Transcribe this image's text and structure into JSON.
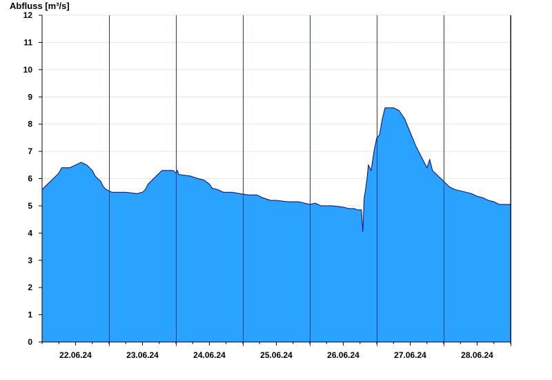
{
  "chart_data": {
    "type": "area",
    "ylabel": "Abfluss [m³/s]",
    "xlabel": "",
    "ylim": [
      0,
      12
    ],
    "yticks": [
      0,
      1,
      2,
      3,
      4,
      5,
      6,
      7,
      8,
      9,
      10,
      11,
      12
    ],
    "x_range": [
      "2024-06-21T12:00",
      "2024-06-28T12:00"
    ],
    "day_separators": [
      "2024-06-22T12:00",
      "2024-06-23T12:00",
      "2024-06-24T12:00",
      "2024-06-25T12:00",
      "2024-06-26T12:00",
      "2024-06-27T12:00",
      "2024-06-28T12:00"
    ],
    "xticks": [
      {
        "x": "2024-06-22T00:00",
        "label": "22.06.24"
      },
      {
        "x": "2024-06-23T00:00",
        "label": "23.06.24"
      },
      {
        "x": "2024-06-24T00:00",
        "label": "24.06.24"
      },
      {
        "x": "2024-06-25T00:00",
        "label": "25.06.24"
      },
      {
        "x": "2024-06-26T00:00",
        "label": "26.06.24"
      },
      {
        "x": "2024-06-27T00:00",
        "label": "27.06.24"
      },
      {
        "x": "2024-06-28T00:00",
        "label": "28.06.24"
      }
    ],
    "grid": true,
    "series": [
      {
        "fill_color": "#29a3ff",
        "line_color": "#00008b",
        "points": [
          [
            "2024-06-21T12:00",
            5.6
          ],
          [
            "2024-06-21T13:00",
            5.7
          ],
          [
            "2024-06-21T14:00",
            5.8
          ],
          [
            "2024-06-21T16:00",
            6.0
          ],
          [
            "2024-06-21T18:00",
            6.2
          ],
          [
            "2024-06-21T19:00",
            6.4
          ],
          [
            "2024-06-21T22:00",
            6.4
          ],
          [
            "2024-06-22T00:00",
            6.5
          ],
          [
            "2024-06-22T02:00",
            6.6
          ],
          [
            "2024-06-22T04:00",
            6.5
          ],
          [
            "2024-06-22T06:00",
            6.3
          ],
          [
            "2024-06-22T07:00",
            6.1
          ],
          [
            "2024-06-22T08:00",
            6.0
          ],
          [
            "2024-06-22T09:00",
            5.9
          ],
          [
            "2024-06-22T10:00",
            5.7
          ],
          [
            "2024-06-22T11:00",
            5.6
          ],
          [
            "2024-06-22T12:00",
            5.55
          ],
          [
            "2024-06-22T13:00",
            5.5
          ],
          [
            "2024-06-22T18:00",
            5.5
          ],
          [
            "2024-06-22T22:00",
            5.45
          ],
          [
            "2024-06-23T00:00",
            5.5
          ],
          [
            "2024-06-23T01:00",
            5.6
          ],
          [
            "2024-06-23T02:00",
            5.8
          ],
          [
            "2024-06-23T04:00",
            6.0
          ],
          [
            "2024-06-23T06:00",
            6.2
          ],
          [
            "2024-06-23T07:00",
            6.3
          ],
          [
            "2024-06-23T11:00",
            6.3
          ],
          [
            "2024-06-23T12:00",
            6.2
          ],
          [
            "2024-06-23T12:30",
            6.3
          ],
          [
            "2024-06-23T13:00",
            6.15
          ],
          [
            "2024-06-23T17:00",
            6.1
          ],
          [
            "2024-06-23T20:00",
            6.0
          ],
          [
            "2024-06-23T22:00",
            5.95
          ],
          [
            "2024-06-24T00:00",
            5.8
          ],
          [
            "2024-06-24T01:00",
            5.65
          ],
          [
            "2024-06-24T03:00",
            5.6
          ],
          [
            "2024-06-24T05:00",
            5.5
          ],
          [
            "2024-06-24T08:00",
            5.5
          ],
          [
            "2024-06-24T11:00",
            5.45
          ],
          [
            "2024-06-24T14:00",
            5.4
          ],
          [
            "2024-06-24T17:00",
            5.4
          ],
          [
            "2024-06-24T19:00",
            5.3
          ],
          [
            "2024-06-24T22:00",
            5.2
          ],
          [
            "2024-06-25T00:00",
            5.2
          ],
          [
            "2024-06-25T04:00",
            5.15
          ],
          [
            "2024-06-25T08:00",
            5.15
          ],
          [
            "2024-06-25T12:00",
            5.05
          ],
          [
            "2024-06-25T14:00",
            5.1
          ],
          [
            "2024-06-25T16:00",
            5.0
          ],
          [
            "2024-06-25T20:00",
            5.0
          ],
          [
            "2024-06-26T00:00",
            4.95
          ],
          [
            "2024-06-26T02:00",
            4.9
          ],
          [
            "2024-06-26T04:00",
            4.9
          ],
          [
            "2024-06-26T05:00",
            4.85
          ],
          [
            "2024-06-26T06:30",
            4.85
          ],
          [
            "2024-06-26T07:00",
            4.05
          ],
          [
            "2024-06-26T07:30",
            5.3
          ],
          [
            "2024-06-26T08:00",
            5.6
          ],
          [
            "2024-06-26T08:30",
            6.0
          ],
          [
            "2024-06-26T09:00",
            6.5
          ],
          [
            "2024-06-26T10:00",
            6.3
          ],
          [
            "2024-06-26T11:00",
            7.0
          ],
          [
            "2024-06-26T12:00",
            7.5
          ],
          [
            "2024-06-26T13:00",
            7.6
          ],
          [
            "2024-06-26T14:00",
            8.2
          ],
          [
            "2024-06-26T15:00",
            8.6
          ],
          [
            "2024-06-26T18:00",
            8.6
          ],
          [
            "2024-06-26T20:00",
            8.5
          ],
          [
            "2024-06-26T22:00",
            8.2
          ],
          [
            "2024-06-27T00:00",
            7.7
          ],
          [
            "2024-06-27T02:00",
            7.2
          ],
          [
            "2024-06-27T03:00",
            7.0
          ],
          [
            "2024-06-27T04:00",
            6.8
          ],
          [
            "2024-06-27T05:00",
            6.6
          ],
          [
            "2024-06-27T06:00",
            6.4
          ],
          [
            "2024-06-27T07:00",
            6.7
          ],
          [
            "2024-06-27T08:00",
            6.3
          ],
          [
            "2024-06-27T10:00",
            6.1
          ],
          [
            "2024-06-27T12:00",
            5.9
          ],
          [
            "2024-06-27T14:00",
            5.7
          ],
          [
            "2024-06-27T16:00",
            5.6
          ],
          [
            "2024-06-27T18:00",
            5.55
          ],
          [
            "2024-06-27T20:00",
            5.5
          ],
          [
            "2024-06-27T22:00",
            5.45
          ],
          [
            "2024-06-28T00:00",
            5.35
          ],
          [
            "2024-06-28T02:00",
            5.3
          ],
          [
            "2024-06-28T04:00",
            5.2
          ],
          [
            "2024-06-28T06:00",
            5.15
          ],
          [
            "2024-06-28T07:00",
            5.1
          ],
          [
            "2024-06-28T08:00",
            5.05
          ],
          [
            "2024-06-28T12:00",
            5.05
          ]
        ]
      }
    ]
  }
}
